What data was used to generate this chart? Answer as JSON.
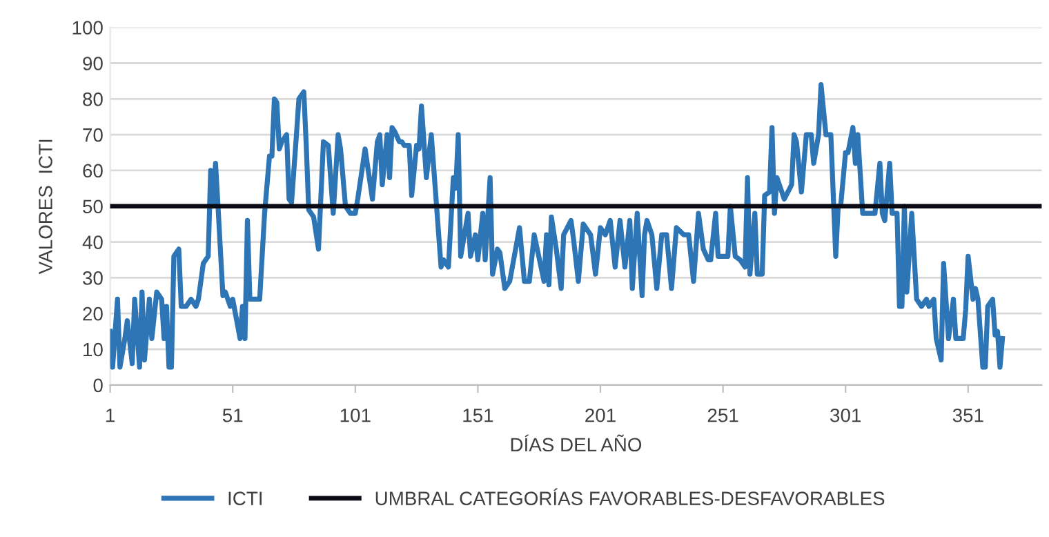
{
  "chart_data": {
    "type": "line",
    "xlabel": "DÍAS DEL AÑO",
    "ylabel": "VALORES  ICTI",
    "x": [
      1,
      2,
      4,
      5,
      7,
      8,
      10,
      11,
      13,
      14,
      15,
      17,
      18,
      20,
      22,
      23,
      24,
      25,
      26,
      27,
      29,
      30,
      32,
      34,
      36,
      37,
      39,
      41,
      42,
      43,
      44,
      45,
      47,
      48,
      50,
      51,
      54,
      55,
      56,
      57,
      58,
      62,
      64,
      66,
      67,
      68,
      69,
      70,
      71,
      73,
      74,
      75,
      77,
      78,
      80,
      81,
      82,
      84,
      86,
      88,
      90,
      92,
      94,
      95,
      97,
      99,
      101,
      102,
      105,
      108,
      110,
      111,
      112,
      114,
      115,
      116,
      117,
      119,
      120,
      121,
      123,
      124,
      126,
      127,
      128,
      130,
      132,
      136,
      137,
      139,
      141,
      142,
      143,
      144,
      147,
      148,
      150,
      151,
      153,
      154,
      156,
      157,
      159,
      160,
      162,
      164,
      168,
      170,
      172,
      174,
      178,
      179,
      180,
      181,
      183,
      185,
      186,
      189,
      190,
      192,
      194,
      197,
      199,
      201,
      203,
      205,
      207,
      209,
      211,
      213,
      214,
      216,
      218,
      219,
      220,
      222,
      224,
      226,
      228,
      230,
      232,
      235,
      237,
      239,
      241,
      243,
      245,
      246,
      248,
      249,
      253,
      254,
      256,
      258,
      260,
      261,
      262,
      264,
      265,
      267,
      268,
      270,
      271,
      272,
      273,
      276,
      279,
      280,
      281,
      283,
      285,
      287,
      288,
      290,
      291,
      293,
      295,
      297,
      298,
      299,
      301,
      302,
      304,
      305,
      306,
      308,
      311,
      313,
      315,
      316,
      317,
      319,
      320,
      322,
      323,
      324,
      325,
      326,
      328,
      330,
      332,
      334,
      335,
      337,
      338,
      340,
      341,
      343,
      345,
      346,
      349,
      350,
      351,
      353,
      354,
      355,
      357,
      358,
      359,
      361,
      362,
      363,
      364,
      365
    ],
    "series": [
      {
        "name": "ICTI",
        "color": "#2e75b6",
        "values": [
          15,
          5,
          24,
          5,
          13,
          18,
          6,
          24,
          5,
          26,
          7,
          24,
          13,
          26,
          24,
          13,
          22,
          5,
          5,
          36,
          38,
          22,
          22,
          24,
          22,
          24,
          34,
          36,
          60,
          50,
          62,
          50,
          25,
          26,
          22,
          24,
          13,
          22,
          13,
          46,
          24,
          24,
          48,
          64,
          64,
          80,
          79,
          66,
          68,
          70,
          52,
          51,
          70,
          80,
          82,
          67,
          49,
          47,
          38,
          68,
          67,
          48,
          70,
          66,
          50,
          48,
          48,
          52,
          66,
          52,
          68,
          70,
          56,
          70,
          58,
          72,
          71,
          68,
          68,
          67,
          67,
          53,
          67,
          66,
          78,
          58,
          70,
          33,
          35,
          33,
          58,
          55,
          70,
          36,
          48,
          36,
          42,
          35,
          48,
          35,
          58,
          31,
          38,
          37,
          27,
          29,
          44,
          29,
          29,
          42,
          29,
          42,
          28,
          47,
          38,
          27,
          42,
          46,
          41,
          29,
          45,
          42,
          31,
          44,
          42,
          46,
          33,
          46,
          33,
          46,
          27,
          48,
          25,
          42,
          46,
          42,
          27,
          42,
          42,
          27,
          44,
          42,
          42,
          29,
          48,
          38,
          35,
          35,
          48,
          36,
          36,
          50,
          36,
          35,
          33,
          58,
          31,
          48,
          31,
          31,
          53,
          54,
          72,
          48,
          58,
          52,
          56,
          70,
          68,
          54,
          70,
          70,
          62,
          70,
          84,
          70,
          70,
          36,
          50,
          50,
          65,
          65,
          72,
          62,
          70,
          48,
          48,
          48,
          62,
          48,
          46,
          62,
          48,
          48,
          22,
          22,
          50,
          26,
          48,
          24,
          22,
          24,
          22,
          24,
          13,
          7,
          34,
          13,
          24,
          13,
          13,
          21,
          36,
          24,
          27,
          24,
          5,
          5,
          22,
          24,
          14,
          15,
          5,
          13
        ]
      }
    ],
    "ref_lines": [
      {
        "axis": "y",
        "value": 50,
        "label": "UMBRAL CATEGORÍAS FAVORABLES-DESFAVORABLES",
        "color": "#0a0a14"
      }
    ],
    "xlim": [
      1,
      381
    ],
    "xticks": [
      1,
      51,
      101,
      151,
      201,
      251,
      301,
      351
    ],
    "ylim": [
      0,
      100
    ],
    "yticks": [
      0,
      10,
      20,
      30,
      40,
      50,
      60,
      70,
      80,
      90,
      100
    ],
    "grid": "y",
    "legend": "bottom",
    "marker": "none",
    "line_style": "solid"
  }
}
